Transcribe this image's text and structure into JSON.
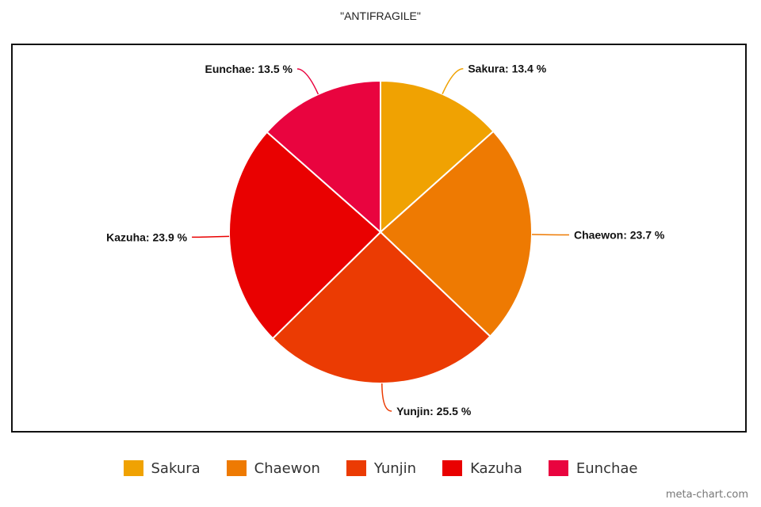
{
  "chart_data": {
    "type": "pie",
    "title": "\"ANTIFRAGILE\"",
    "categories": [
      "Sakura",
      "Chaewon",
      "Yunjin",
      "Kazuha",
      "Eunchae"
    ],
    "values": [
      13.4,
      23.7,
      25.5,
      23.9,
      13.5
    ],
    "labels": [
      "Sakura: 13.4 %",
      "Chaewon: 23.7 %",
      "Yunjin: 25.5 %",
      "Kazuha: 23.9 %",
      "Eunchae: 13.5 %"
    ],
    "colors": [
      "#F0A202",
      "#EE7A02",
      "#EB3B03",
      "#E90101",
      "#E9043F"
    ],
    "legend_position": "bottom",
    "start_angle": "12 o'clock, clockwise"
  },
  "watermark": "meta-chart.com"
}
